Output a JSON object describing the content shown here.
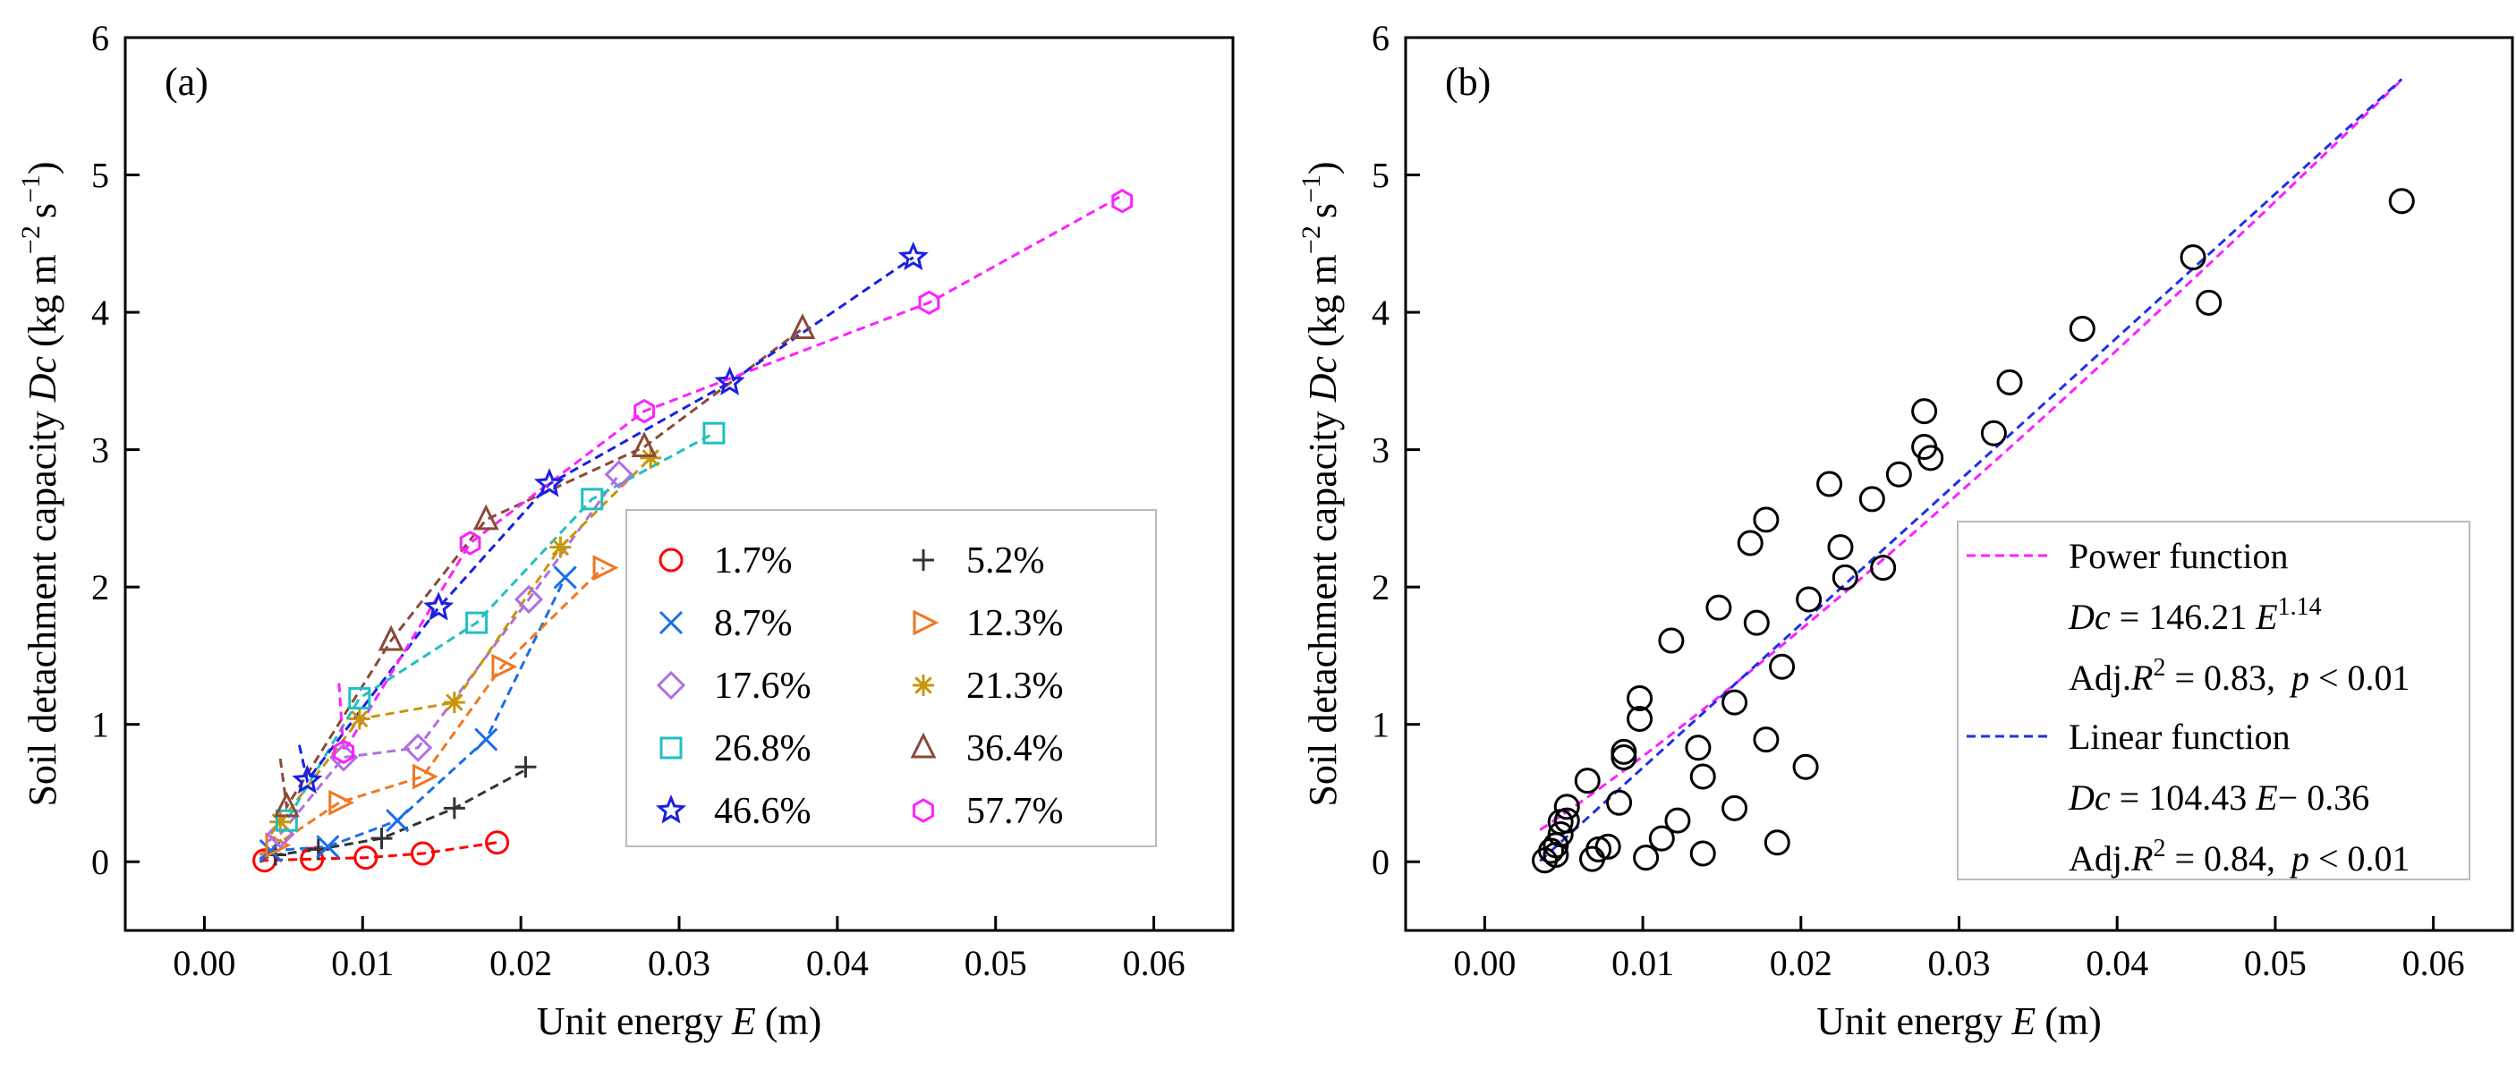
{
  "chart_data": [
    {
      "type": "scatter",
      "panel_label": "(a)",
      "xlabel": "Unit energy",
      "xlabel_var": "E",
      "xlabel_unit": "(m)",
      "ylabel": "Soil detachment capacity",
      "ylabel_var": "Dc",
      "ylabel_unit": "(kg m",
      "xlim": [
        -0.005,
        0.065
      ],
      "ylim": [
        -0.5,
        6
      ],
      "xticks": [
        0.0,
        0.01,
        0.02,
        0.03,
        0.04,
        0.05,
        0.06
      ],
      "xtick_labels": [
        "0.00",
        "0.01",
        "0.02",
        "0.03",
        "0.04",
        "0.05",
        "0.06"
      ],
      "yticks": [
        0,
        1,
        2,
        3,
        4,
        5,
        6
      ],
      "ytick_labels": [
        "0",
        "1",
        "2",
        "3",
        "4",
        "5",
        "6"
      ],
      "legend_position": "center-right",
      "grid": false,
      "series": [
        {
          "name": "1.7%",
          "marker": "circle",
          "color": "#ff0000",
          "x": [
            0.0038,
            0.0068,
            0.0102,
            0.0138,
            0.0185
          ],
          "y": [
            0.01,
            0.02,
            0.03,
            0.06,
            0.14
          ],
          "fit_x": [
            0.0035,
            0.0185
          ],
          "fit_y": [
            0.0,
            0.14
          ]
        },
        {
          "name": "5.2%",
          "marker": "plus",
          "color": "#333333",
          "x": [
            0.0045,
            0.0072,
            0.0112,
            0.0158,
            0.0203
          ],
          "y": [
            0.05,
            0.09,
            0.17,
            0.39,
            0.69
          ],
          "fit_x": [
            0.0035,
            0.0203
          ],
          "fit_y": [
            0.02,
            0.67
          ]
        },
        {
          "name": "8.7%",
          "marker": "x",
          "color": "#1a6fe8",
          "x": [
            0.0042,
            0.0078,
            0.0122,
            0.0178,
            0.0228
          ],
          "y": [
            0.08,
            0.11,
            0.3,
            0.89,
            2.07
          ],
          "fit_x": [
            0.0035,
            0.0228
          ],
          "fit_y": [
            0.02,
            2.07
          ]
        },
        {
          "name": "12.3%",
          "marker": "triangle-right",
          "color": "#f07820",
          "x": [
            0.0045,
            0.0085,
            0.0138,
            0.0188,
            0.0252
          ],
          "y": [
            0.12,
            0.43,
            0.62,
            1.42,
            2.14
          ],
          "fit_x": [
            0.0035,
            0.0252
          ],
          "fit_y": [
            0.05,
            2.14
          ]
        },
        {
          "name": "17.6%",
          "marker": "diamond",
          "color": "#b070e0",
          "x": [
            0.0048,
            0.0088,
            0.0135,
            0.0205,
            0.0262
          ],
          "y": [
            0.2,
            0.76,
            0.83,
            1.91,
            2.82
          ],
          "fit_x": [
            0.004,
            0.0262
          ],
          "fit_y": [
            0.15,
            2.82
          ]
        },
        {
          "name": "21.3%",
          "marker": "asterisk",
          "color": "#c8960c",
          "x": [
            0.0048,
            0.0098,
            0.0158,
            0.0225,
            0.0282
          ],
          "y": [
            0.29,
            1.04,
            1.16,
            2.29,
            2.94
          ],
          "fit_x": [
            0.0042,
            0.0282
          ],
          "fit_y": [
            0.2,
            2.94
          ]
        },
        {
          "name": "26.8%",
          "marker": "square",
          "color": "#20c0c0",
          "x": [
            0.0052,
            0.0098,
            0.0172,
            0.0245,
            0.0322
          ],
          "y": [
            0.3,
            1.19,
            1.74,
            2.64,
            3.12
          ],
          "fit_x": [
            0.0045,
            0.0322
          ],
          "fit_y": [
            0.3,
            3.12
          ]
        },
        {
          "name": "36.4%",
          "marker": "triangle-up",
          "color": "#8b4a3a",
          "x": [
            0.0052,
            0.0118,
            0.0178,
            0.0278,
            0.0378
          ],
          "y": [
            0.4,
            1.61,
            2.49,
            3.02,
            3.88
          ],
          "fit_x": [
            0.0048,
            0.0378
          ],
          "fit_y": [
            0.75,
            3.88
          ]
        },
        {
          "name": "46.6%",
          "marker": "star",
          "color": "#1a20e0",
          "x": [
            0.0065,
            0.0148,
            0.0218,
            0.0332,
            0.0448
          ],
          "y": [
            0.59,
            1.85,
            2.75,
            3.49,
            4.4
          ],
          "fit_x": [
            0.006,
            0.0448
          ],
          "fit_y": [
            0.85,
            4.4
          ]
        },
        {
          "name": "57.7%",
          "marker": "hexagon",
          "color": "#ff20ff",
          "x": [
            0.0088,
            0.0168,
            0.0278,
            0.0458,
            0.058
          ],
          "y": [
            0.8,
            2.32,
            3.28,
            4.07,
            4.81
          ],
          "fit_x": [
            0.0085,
            0.058
          ],
          "fit_y": [
            1.3,
            4.85
          ]
        }
      ]
    },
    {
      "type": "scatter",
      "panel_label": "(b)",
      "xlabel": "Unit energy",
      "xlabel_var": "E",
      "xlabel_unit": "(m)",
      "ylabel": "Soil detachment capacity",
      "ylabel_var": "Dc",
      "ylabel_unit": "(kg m",
      "xlim": [
        -0.005,
        0.065
      ],
      "ylim": [
        -0.5,
        6
      ],
      "xticks": [
        0.0,
        0.01,
        0.02,
        0.03,
        0.04,
        0.05,
        0.06
      ],
      "xtick_labels": [
        "0.00",
        "0.01",
        "0.02",
        "0.03",
        "0.04",
        "0.05",
        "0.06"
      ],
      "yticks": [
        0,
        1,
        2,
        3,
        4,
        5,
        6
      ],
      "ytick_labels": [
        "0",
        "1",
        "2",
        "3",
        "4",
        "5",
        "6"
      ],
      "legend_position": "bottom-right",
      "grid": false,
      "points": {
        "x": [
          0.0038,
          0.0068,
          0.0102,
          0.0138,
          0.0185,
          0.0045,
          0.0072,
          0.0112,
          0.0158,
          0.0203,
          0.0042,
          0.0078,
          0.0122,
          0.0178,
          0.0228,
          0.0045,
          0.0085,
          0.0138,
          0.0188,
          0.0252,
          0.0048,
          0.0088,
          0.0135,
          0.0205,
          0.0262,
          0.0048,
          0.0098,
          0.0158,
          0.0225,
          0.0282,
          0.0052,
          0.0098,
          0.0172,
          0.0245,
          0.0322,
          0.0052,
          0.0118,
          0.0178,
          0.0278,
          0.0378,
          0.0065,
          0.0148,
          0.0218,
          0.0332,
          0.0448,
          0.0088,
          0.0168,
          0.0278,
          0.0458,
          0.058
        ],
        "y": [
          0.01,
          0.02,
          0.03,
          0.06,
          0.14,
          0.05,
          0.09,
          0.17,
          0.39,
          0.69,
          0.08,
          0.11,
          0.3,
          0.89,
          2.07,
          0.12,
          0.43,
          0.62,
          1.42,
          2.14,
          0.2,
          0.76,
          0.83,
          1.91,
          2.82,
          0.29,
          1.04,
          1.16,
          2.29,
          2.94,
          0.3,
          1.19,
          1.74,
          2.64,
          3.12,
          0.4,
          1.61,
          2.49,
          3.02,
          3.88,
          0.59,
          1.85,
          2.75,
          3.49,
          4.4,
          0.8,
          2.32,
          3.28,
          4.07,
          4.81
        ]
      },
      "fits": [
        {
          "name": "Power function",
          "color": "#ff20ff",
          "a": 146.21,
          "b": 1.14,
          "x_range": [
            0.0035,
            0.058
          ],
          "equation": {
            "lhs": "Dc",
            "mid": " = 146.21 ",
            "var": "E",
            "sup": "1.14"
          },
          "stats": {
            "prefix": "Adj.",
            "r": "R",
            "sup": "2",
            "mid": " = 0.83, ",
            "p": "p",
            "tail": " < 0.01"
          }
        },
        {
          "name": "Linear function",
          "color": "#2030e8",
          "slope": 104.43,
          "intercept": -0.36,
          "x_range": [
            0.0035,
            0.058
          ],
          "equation": {
            "lhs": "Dc",
            "mid": " = 104.43 ",
            "var": "E",
            "tail": "− 0.36"
          },
          "stats": {
            "prefix": "Adj.",
            "r": "R",
            "sup": "2",
            "mid": " = 0.84, ",
            "p": "p",
            "tail": " < 0.01"
          }
        }
      ]
    }
  ]
}
